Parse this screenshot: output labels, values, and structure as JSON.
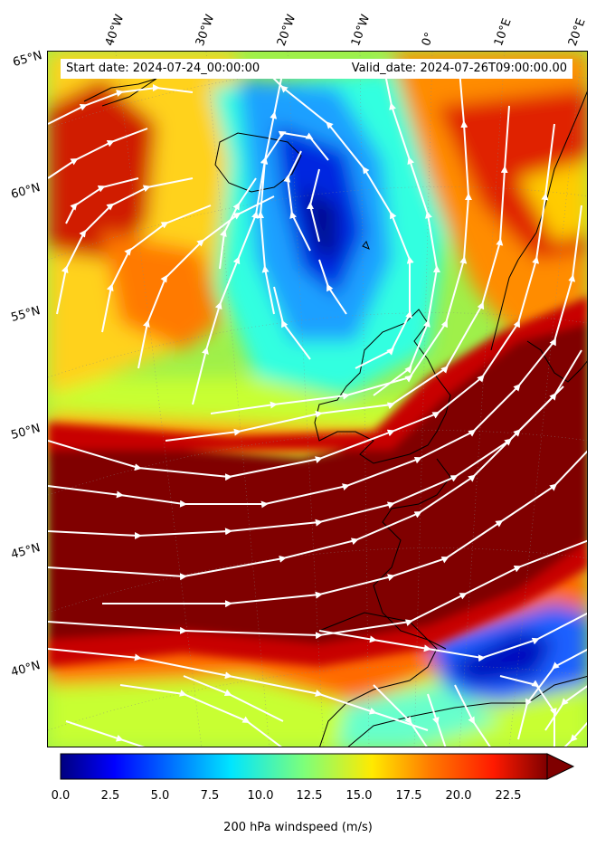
{
  "header": {
    "start_date": "Start date: 2024-07-24_00:00:00",
    "valid_date": "Valid_date: 2024-07-26T09:00:00.00"
  },
  "longitude_labels": [
    "40°W",
    "30°W",
    "20°W",
    "10°W",
    "0°",
    "10°E",
    "20°E"
  ],
  "latitude_labels": [
    "65°N",
    "60°N",
    "55°N",
    "50°N",
    "45°N",
    "40°N"
  ],
  "colorbar": {
    "label": "200 hPa windspeed (m/s)",
    "ticks": [
      "0.0",
      "2.5",
      "5.0",
      "7.5",
      "10.0",
      "12.5",
      "15.0",
      "17.5",
      "20.0",
      "22.5"
    ],
    "min": 0,
    "max": 25,
    "extend": "max",
    "colormap": "jet"
  },
  "colors": {
    "jet_core": "#800000",
    "low_speed": "#00008f",
    "streamline": "#ffffff",
    "coastline": "#000000"
  }
}
